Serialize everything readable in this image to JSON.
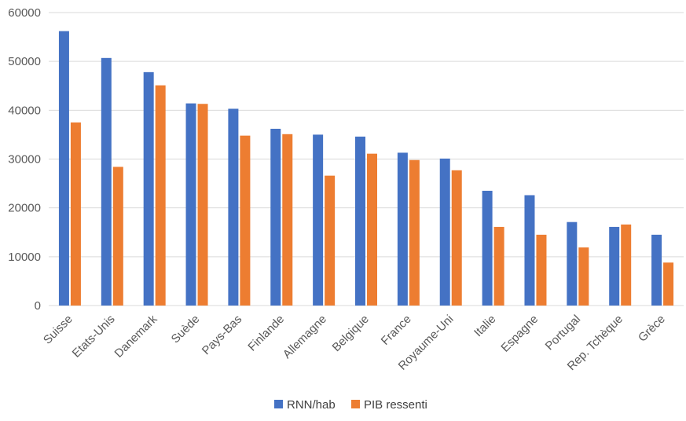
{
  "chart_data": {
    "type": "bar",
    "title": "",
    "xlabel": "",
    "ylabel": "",
    "ylim": [
      0,
      60000
    ],
    "yticks": [
      0,
      10000,
      20000,
      30000,
      40000,
      50000,
      60000
    ],
    "ytick_labels": [
      "0",
      "10000",
      "20000",
      "30000",
      "40000",
      "50000",
      "60000"
    ],
    "grid": true,
    "legend_position": "bottom",
    "categories": [
      "Suisse",
      "Etats-Unis",
      "Danemark",
      "Suède",
      "Pays-Bas",
      "Finlande",
      "Allemagne",
      "Belgique",
      "France",
      "Royaume-Uni",
      "Italie",
      "Espagne",
      "Portugal",
      "Rep. Tchèque",
      "Grèce"
    ],
    "series": [
      {
        "name": "RNN/hab",
        "color": "#4472C4",
        "values": [
          56200,
          50700,
          47800,
          41400,
          40300,
          36200,
          35000,
          34600,
          31300,
          30100,
          23500,
          22600,
          17100,
          16100,
          14500
        ]
      },
      {
        "name": "PIB ressenti",
        "color": "#ED7D31",
        "values": [
          37500,
          28400,
          45100,
          41300,
          34800,
          35100,
          26600,
          31100,
          29800,
          27700,
          16100,
          14500,
          11900,
          16600,
          8800
        ]
      }
    ]
  }
}
